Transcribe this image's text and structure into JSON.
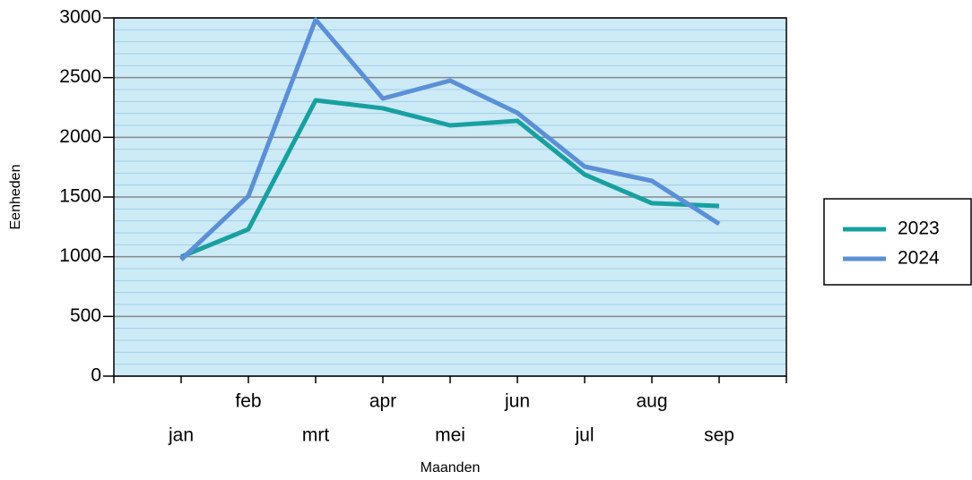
{
  "chart_data": {
    "type": "line",
    "x_label": "Maanden",
    "y_label": "Eenheden",
    "categories": [
      "jan",
      "feb",
      "mrt",
      "apr",
      "mei",
      "jun",
      "jul",
      "aug",
      "sep"
    ],
    "series": [
      {
        "name": "2023",
        "color": "#18a0a0",
        "values": [
          1000,
          1230,
          2310,
          2243,
          2100,
          2138,
          1688,
          1448,
          1425
        ]
      },
      {
        "name": "2024",
        "color": "#5b8fd6",
        "values": [
          975,
          1508,
          2985,
          2325,
          2475,
          2205,
          1755,
          1635,
          1275
        ]
      }
    ],
    "ylim": [
      0,
      3000
    ],
    "yticks": [
      0,
      500,
      1000,
      1500,
      2000,
      2500,
      3000
    ],
    "grid": true,
    "minor_grid": true,
    "legend": "right",
    "background": "#cdeaf7"
  }
}
